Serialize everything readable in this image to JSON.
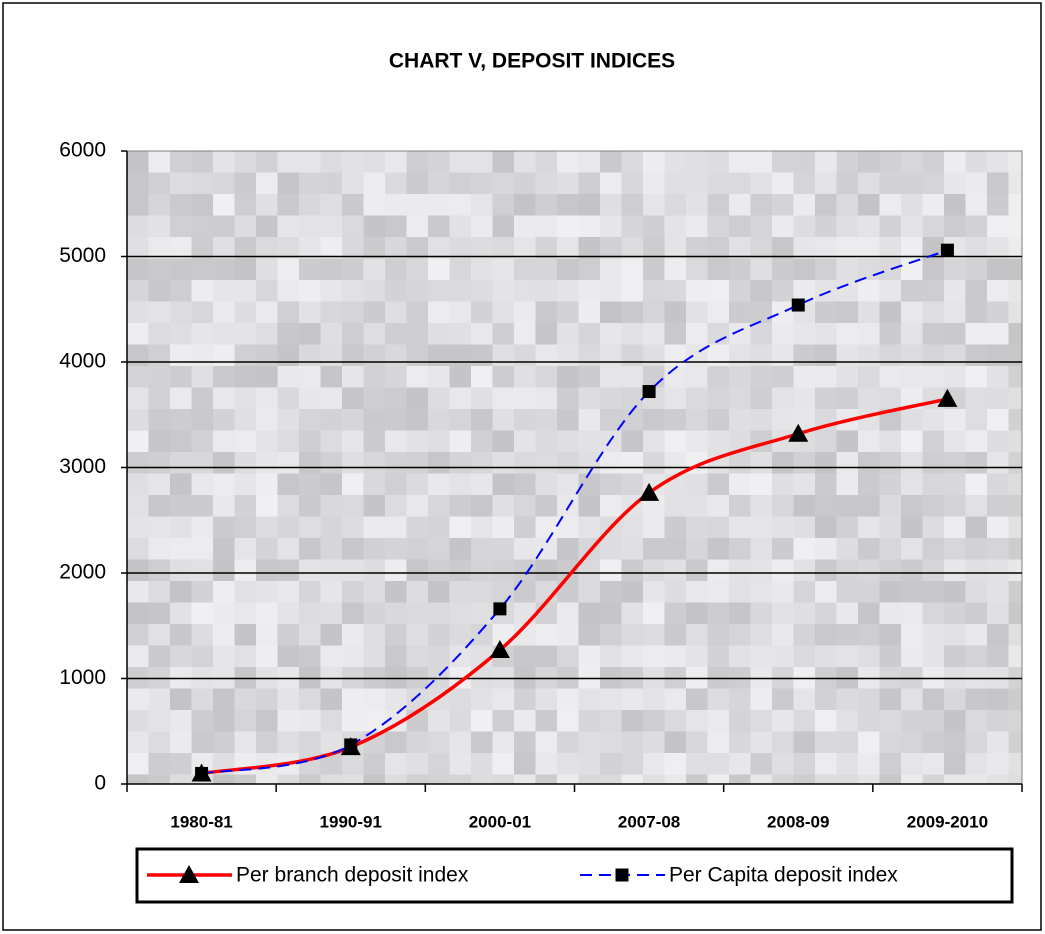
{
  "chart_data": {
    "type": "line",
    "title": "CHART V,  DEPOSIT INDICES",
    "categories": [
      "1980-81",
      "1990-91",
      "2000-01",
      "2007-08",
      "2008-09",
      "2009-2010"
    ],
    "series": [
      {
        "name": "Per branch deposit index",
        "color": "#ff0000",
        "marker": "triangle",
        "dash": false,
        "values": [
          100,
          350,
          1270,
          2760,
          3320,
          3650
        ]
      },
      {
        "name": "Per Capita deposit index",
        "color": "#0000ff",
        "marker": "square",
        "dash": true,
        "values": [
          100,
          370,
          1660,
          3720,
          4540,
          5060
        ]
      }
    ],
    "ylim": [
      0,
      6000
    ],
    "yticks": [
      0,
      1000,
      2000,
      3000,
      4000,
      5000,
      6000
    ],
    "grid": true,
    "legend": "bottom"
  }
}
